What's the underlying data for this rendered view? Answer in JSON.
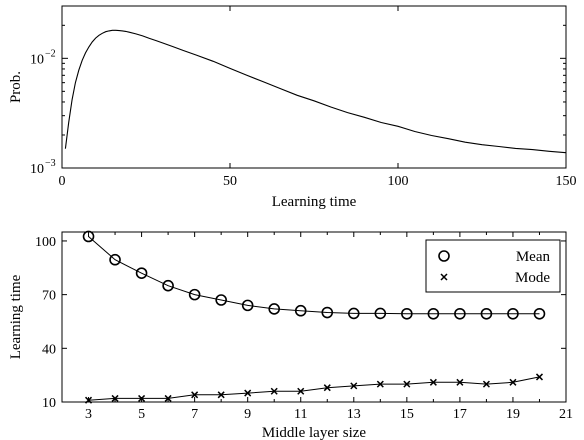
{
  "chart_data": [
    {
      "type": "line",
      "xlabel": "Learning time",
      "ylabel": "Prob.",
      "xlim": [
        0,
        150
      ],
      "ylim": [
        0.001,
        0.03
      ],
      "yscale": "log",
      "xticks": [
        0,
        50,
        100,
        150
      ],
      "yticks": [
        {
          "value": 0.001,
          "base": "10",
          "exp": "−3"
        },
        {
          "value": 0.01,
          "base": "10",
          "exp": "−2"
        }
      ],
      "series": [
        {
          "x": [
            1,
            2,
            3,
            4,
            5,
            6,
            7,
            8,
            9,
            10,
            11,
            12,
            13,
            14,
            15,
            16,
            17,
            18,
            19,
            20,
            22,
            24,
            26,
            28,
            30,
            33,
            36,
            40,
            45,
            50,
            55,
            60,
            65,
            70,
            75,
            80,
            85,
            90,
            95,
            100,
            105,
            110,
            115,
            120,
            125,
            130,
            135,
            140,
            145,
            150
          ],
          "y": [
            0.0015,
            0.0026,
            0.0042,
            0.006,
            0.0078,
            0.0096,
            0.0112,
            0.0127,
            0.0141,
            0.0153,
            0.0162,
            0.0169,
            0.0175,
            0.0178,
            0.018,
            0.018,
            0.0179,
            0.0178,
            0.0176,
            0.0173,
            0.0167,
            0.016,
            0.0152,
            0.0145,
            0.0138,
            0.0128,
            0.0118,
            0.0107,
            0.0094,
            0.0081,
            0.007,
            0.0061,
            0.0053,
            0.0046,
            0.0041,
            0.0036,
            0.0032,
            0.0029,
            0.0026,
            0.0024,
            0.00215,
            0.00198,
            0.00185,
            0.00172,
            0.00163,
            0.00157,
            0.00151,
            0.00147,
            0.00142,
            0.00138
          ]
        }
      ]
    },
    {
      "type": "line",
      "xlabel": "Middle layer size",
      "ylabel": "Learning time",
      "xlim": [
        2,
        21
      ],
      "ylim": [
        10,
        105
      ],
      "xticks": [
        3,
        5,
        7,
        9,
        11,
        13,
        15,
        17,
        19,
        21
      ],
      "yticks": [
        10,
        40,
        70,
        100
      ],
      "legend_position": "top-right",
      "x": [
        3,
        4,
        5,
        6,
        7,
        8,
        9,
        10,
        11,
        12,
        13,
        14,
        15,
        16,
        17,
        18,
        19,
        20
      ],
      "series": [
        {
          "name": "Mean",
          "marker": "circle",
          "values": [
            102.5,
            89.5,
            82,
            75,
            70,
            67,
            64,
            62,
            61,
            60,
            59.5,
            59.5,
            59.3,
            59.3,
            59.3,
            59.3,
            59.3,
            59.3
          ]
        },
        {
          "name": "Mode",
          "marker": "x",
          "values": [
            11,
            12,
            12,
            12,
            14,
            14,
            15,
            16,
            16,
            18,
            19,
            20,
            20,
            21,
            21,
            20,
            21,
            24
          ]
        }
      ]
    }
  ]
}
